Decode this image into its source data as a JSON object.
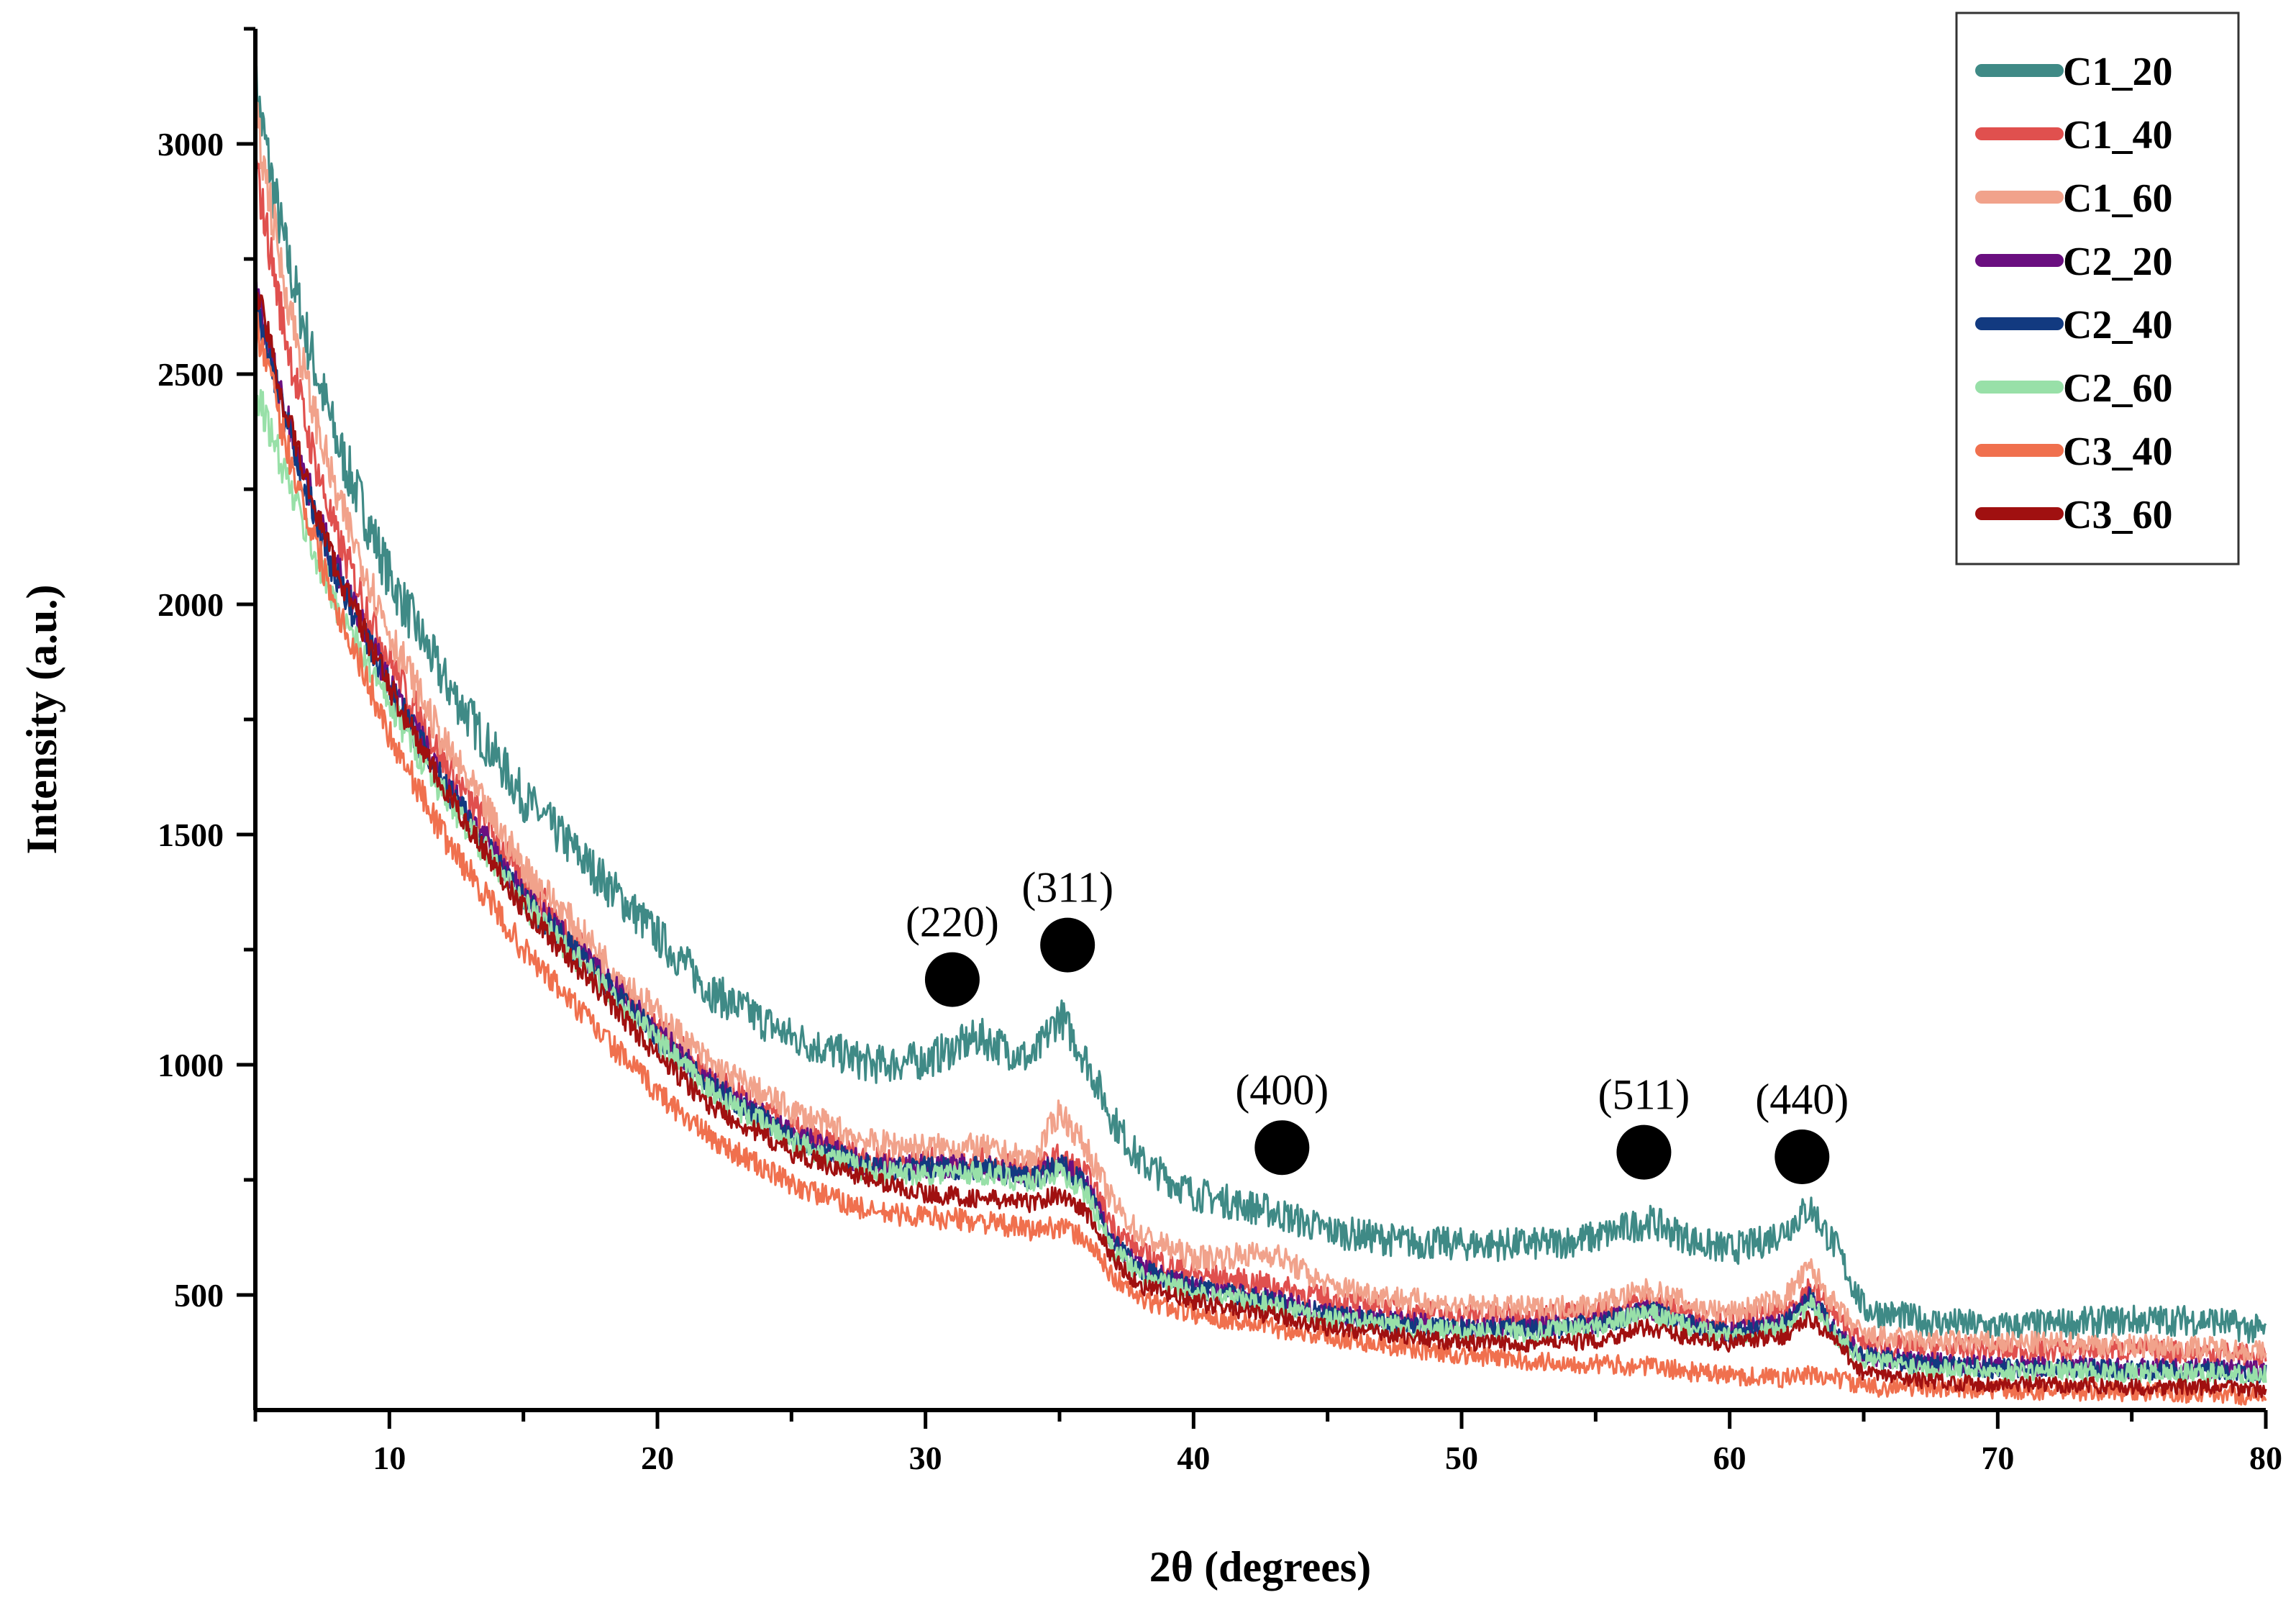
{
  "chart_data": {
    "type": "line",
    "title": "",
    "xlabel": "2θ (degrees)",
    "ylabel": "Intensity (a.u.)",
    "xlim": [
      5,
      80
    ],
    "ylim": [
      250,
      3250
    ],
    "x_ticks": [
      10,
      20,
      30,
      40,
      50,
      60,
      70,
      80
    ],
    "y_ticks": [
      500,
      1000,
      1500,
      2000,
      2500,
      3000
    ],
    "grid": false,
    "legend_position": "top-right",
    "series": [
      {
        "name": "C1_20",
        "color": "#3f8a86",
        "noise": 45,
        "points": [
          [
            5,
            3120
          ],
          [
            6,
            2800
          ],
          [
            7,
            2560
          ],
          [
            8,
            2360
          ],
          [
            10,
            2060
          ],
          [
            12,
            1840
          ],
          [
            15,
            1580
          ],
          [
            18,
            1400
          ],
          [
            20,
            1280
          ],
          [
            22,
            1160
          ],
          [
            25,
            1060
          ],
          [
            28,
            1000
          ],
          [
            30,
            1010
          ],
          [
            32,
            1060
          ],
          [
            34,
            1010
          ],
          [
            35,
            1110
          ],
          [
            36,
            1010
          ],
          [
            37,
            880
          ],
          [
            38,
            790
          ],
          [
            40,
            720
          ],
          [
            43,
            680
          ],
          [
            45,
            640
          ],
          [
            48,
            615
          ],
          [
            50,
            610
          ],
          [
            53,
            610
          ],
          [
            55,
            625
          ],
          [
            57,
            660
          ],
          [
            59,
            610
          ],
          [
            60,
            600
          ],
          [
            61,
            610
          ],
          [
            62,
            640
          ],
          [
            63,
            690
          ],
          [
            64,
            600
          ],
          [
            65,
            470
          ],
          [
            67,
            445
          ],
          [
            70,
            430
          ],
          [
            73,
            440
          ],
          [
            75,
            445
          ],
          [
            78,
            445
          ],
          [
            80,
            420
          ]
        ]
      },
      {
        "name": "C1_40",
        "color": "#e0504e",
        "noise": 35,
        "points": [
          [
            5,
            2950
          ],
          [
            6,
            2620
          ],
          [
            7,
            2360
          ],
          [
            8,
            2150
          ],
          [
            10,
            1880
          ],
          [
            12,
            1660
          ],
          [
            15,
            1400
          ],
          [
            18,
            1200
          ],
          [
            20,
            1080
          ],
          [
            22,
            970
          ],
          [
            25,
            860
          ],
          [
            28,
            790
          ],
          [
            30,
            790
          ],
          [
            32,
            790
          ],
          [
            34,
            770
          ],
          [
            35,
            800
          ],
          [
            36,
            760
          ],
          [
            37,
            650
          ],
          [
            38,
            590
          ],
          [
            40,
            545
          ],
          [
            43,
            520
          ],
          [
            45,
            490
          ],
          [
            48,
            465
          ],
          [
            50,
            455
          ],
          [
            53,
            455
          ],
          [
            55,
            460
          ],
          [
            57,
            490
          ],
          [
            59,
            450
          ],
          [
            60,
            445
          ],
          [
            62,
            460
          ],
          [
            63,
            520
          ],
          [
            64,
            450
          ],
          [
            65,
            390
          ],
          [
            67,
            385
          ],
          [
            70,
            380
          ],
          [
            73,
            380
          ],
          [
            75,
            380
          ],
          [
            78,
            375
          ],
          [
            80,
            365
          ]
        ]
      },
      {
        "name": "C1_60",
        "color": "#f1a28b",
        "noise": 35,
        "points": [
          [
            5,
            3060
          ],
          [
            6,
            2720
          ],
          [
            7,
            2460
          ],
          [
            8,
            2240
          ],
          [
            10,
            1940
          ],
          [
            12,
            1700
          ],
          [
            15,
            1430
          ],
          [
            18,
            1230
          ],
          [
            20,
            1110
          ],
          [
            22,
            1000
          ],
          [
            25,
            900
          ],
          [
            28,
            830
          ],
          [
            30,
            820
          ],
          [
            32,
            820
          ],
          [
            34,
            790
          ],
          [
            35,
            900
          ],
          [
            36,
            820
          ],
          [
            37,
            700
          ],
          [
            38,
            630
          ],
          [
            40,
            580
          ],
          [
            43,
            590
          ],
          [
            45,
            520
          ],
          [
            48,
            490
          ],
          [
            50,
            475
          ],
          [
            53,
            470
          ],
          [
            55,
            480
          ],
          [
            57,
            510
          ],
          [
            59,
            470
          ],
          [
            60,
            460
          ],
          [
            62,
            490
          ],
          [
            63,
            560
          ],
          [
            64,
            470
          ],
          [
            65,
            410
          ],
          [
            67,
            400
          ],
          [
            70,
            395
          ],
          [
            73,
            395
          ],
          [
            75,
            390
          ],
          [
            78,
            385
          ],
          [
            80,
            375
          ]
        ]
      },
      {
        "name": "C2_20",
        "color": "#6a0f80",
        "noise": 30,
        "points": [
          [
            5,
            2680
          ],
          [
            6,
            2440
          ],
          [
            7,
            2250
          ],
          [
            8,
            2080
          ],
          [
            10,
            1830
          ],
          [
            12,
            1620
          ],
          [
            15,
            1370
          ],
          [
            18,
            1190
          ],
          [
            20,
            1070
          ],
          [
            22,
            960
          ],
          [
            25,
            850
          ],
          [
            28,
            780
          ],
          [
            30,
            780
          ],
          [
            32,
            780
          ],
          [
            34,
            760
          ],
          [
            35,
            790
          ],
          [
            36,
            740
          ],
          [
            37,
            620
          ],
          [
            38,
            560
          ],
          [
            40,
            520
          ],
          [
            43,
            490
          ],
          [
            45,
            460
          ],
          [
            48,
            440
          ],
          [
            50,
            430
          ],
          [
            53,
            430
          ],
          [
            55,
            440
          ],
          [
            57,
            470
          ],
          [
            59,
            430
          ],
          [
            60,
            420
          ],
          [
            62,
            440
          ],
          [
            63,
            500
          ],
          [
            64,
            420
          ],
          [
            65,
            370
          ],
          [
            67,
            355
          ],
          [
            70,
            345
          ],
          [
            73,
            345
          ],
          [
            75,
            340
          ],
          [
            78,
            340
          ],
          [
            80,
            335
          ]
        ]
      },
      {
        "name": "C2_40",
        "color": "#123a80",
        "noise": 30,
        "points": [
          [
            5,
            2650
          ],
          [
            6,
            2420
          ],
          [
            7,
            2230
          ],
          [
            8,
            2060
          ],
          [
            10,
            1820
          ],
          [
            12,
            1610
          ],
          [
            15,
            1360
          ],
          [
            18,
            1180
          ],
          [
            20,
            1060
          ],
          [
            22,
            950
          ],
          [
            25,
            845
          ],
          [
            28,
            775
          ],
          [
            30,
            775
          ],
          [
            32,
            775
          ],
          [
            34,
            755
          ],
          [
            35,
            785
          ],
          [
            36,
            735
          ],
          [
            37,
            615
          ],
          [
            38,
            555
          ],
          [
            40,
            515
          ],
          [
            43,
            485
          ],
          [
            45,
            455
          ],
          [
            48,
            435
          ],
          [
            50,
            425
          ],
          [
            53,
            425
          ],
          [
            55,
            435
          ],
          [
            57,
            465
          ],
          [
            59,
            425
          ],
          [
            60,
            415
          ],
          [
            62,
            435
          ],
          [
            63,
            495
          ],
          [
            64,
            415
          ],
          [
            65,
            365
          ],
          [
            67,
            350
          ],
          [
            70,
            340
          ],
          [
            73,
            340
          ],
          [
            75,
            335
          ],
          [
            78,
            335
          ],
          [
            80,
            330
          ]
        ]
      },
      {
        "name": "C2_60",
        "color": "#98e0a8",
        "noise": 30,
        "points": [
          [
            5,
            2470
          ],
          [
            6,
            2300
          ],
          [
            7,
            2140
          ],
          [
            8,
            2000
          ],
          [
            10,
            1780
          ],
          [
            12,
            1590
          ],
          [
            15,
            1350
          ],
          [
            18,
            1170
          ],
          [
            20,
            1050
          ],
          [
            22,
            940
          ],
          [
            25,
            835
          ],
          [
            28,
            765
          ],
          [
            30,
            765
          ],
          [
            32,
            765
          ],
          [
            34,
            745
          ],
          [
            35,
            770
          ],
          [
            36,
            720
          ],
          [
            37,
            600
          ],
          [
            38,
            540
          ],
          [
            40,
            505
          ],
          [
            43,
            480
          ],
          [
            45,
            450
          ],
          [
            48,
            430
          ],
          [
            50,
            420
          ],
          [
            53,
            420
          ],
          [
            55,
            430
          ],
          [
            57,
            460
          ],
          [
            59,
            420
          ],
          [
            60,
            410
          ],
          [
            62,
            430
          ],
          [
            63,
            480
          ],
          [
            64,
            410
          ],
          [
            65,
            360
          ],
          [
            67,
            345
          ],
          [
            70,
            335
          ],
          [
            73,
            335
          ],
          [
            75,
            330
          ],
          [
            78,
            330
          ],
          [
            80,
            325
          ]
        ]
      },
      {
        "name": "C3_40",
        "color": "#f0704e",
        "noise": 30,
        "points": [
          [
            5,
            2620
          ],
          [
            6,
            2380
          ],
          [
            7,
            2180
          ],
          [
            8,
            2000
          ],
          [
            10,
            1720
          ],
          [
            12,
            1500
          ],
          [
            15,
            1250
          ],
          [
            18,
            1060
          ],
          [
            20,
            940
          ],
          [
            22,
            840
          ],
          [
            25,
            740
          ],
          [
            28,
            680
          ],
          [
            30,
            670
          ],
          [
            32,
            660
          ],
          [
            34,
            640
          ],
          [
            35,
            650
          ],
          [
            36,
            620
          ],
          [
            37,
            540
          ],
          [
            38,
            490
          ],
          [
            40,
            460
          ],
          [
            43,
            430
          ],
          [
            45,
            410
          ],
          [
            48,
            385
          ],
          [
            50,
            370
          ],
          [
            53,
            355
          ],
          [
            55,
            350
          ],
          [
            57,
            345
          ],
          [
            59,
            330
          ],
          [
            60,
            325
          ],
          [
            62,
            320
          ],
          [
            63,
            325
          ],
          [
            64,
            320
          ],
          [
            65,
            300
          ],
          [
            67,
            300
          ],
          [
            70,
            295
          ],
          [
            73,
            290
          ],
          [
            75,
            290
          ],
          [
            78,
            285
          ],
          [
            80,
            280
          ]
        ]
      },
      {
        "name": "C3_60",
        "color": "#a01010",
        "noise": 25,
        "points": [
          [
            5,
            2700
          ],
          [
            6,
            2450
          ],
          [
            7,
            2250
          ],
          [
            8,
            2080
          ],
          [
            10,
            1820
          ],
          [
            12,
            1600
          ],
          [
            15,
            1340
          ],
          [
            18,
            1150
          ],
          [
            20,
            1020
          ],
          [
            22,
            910
          ],
          [
            25,
            810
          ],
          [
            28,
            750
          ],
          [
            30,
            720
          ],
          [
            32,
            710
          ],
          [
            34,
            700
          ],
          [
            35,
            720
          ],
          [
            36,
            680
          ],
          [
            37,
            580
          ],
          [
            38,
            520
          ],
          [
            40,
            485
          ],
          [
            43,
            455
          ],
          [
            45,
            430
          ],
          [
            48,
            410
          ],
          [
            50,
            395
          ],
          [
            53,
            395
          ],
          [
            55,
            400
          ],
          [
            57,
            430
          ],
          [
            59,
            400
          ],
          [
            60,
            395
          ],
          [
            62,
            410
          ],
          [
            63,
            450
          ],
          [
            64,
            395
          ],
          [
            65,
            330
          ],
          [
            67,
            315
          ],
          [
            70,
            305
          ],
          [
            73,
            305
          ],
          [
            75,
            300
          ],
          [
            78,
            300
          ],
          [
            80,
            295
          ]
        ]
      }
    ],
    "annotations": [
      {
        "label": "(220)",
        "x": 31.0,
        "y": 1185
      },
      {
        "label": "(311)",
        "x": 35.3,
        "y": 1260
      },
      {
        "label": "(400)",
        "x": 43.3,
        "y": 820
      },
      {
        "label": "(511)",
        "x": 56.8,
        "y": 810
      },
      {
        "label": "(440)",
        "x": 62.7,
        "y": 800
      }
    ]
  }
}
